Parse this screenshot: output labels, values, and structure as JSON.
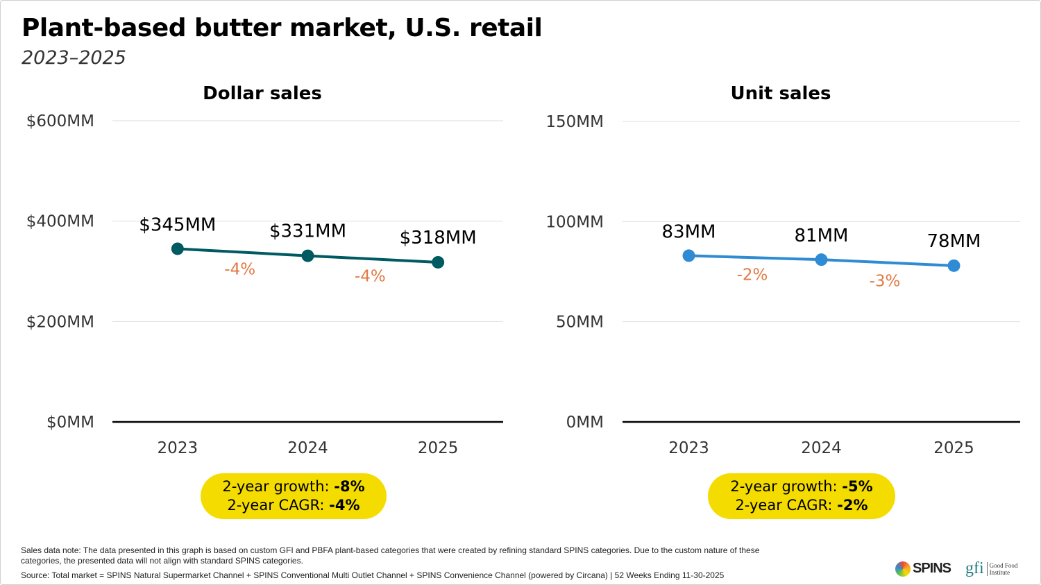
{
  "title": "Plant-based butter market, U.S. retail",
  "subtitle": "2023–2025",
  "chart_data": [
    {
      "type": "line",
      "title": "Dollar sales",
      "categories": [
        "2023",
        "2024",
        "2025"
      ],
      "values": [
        345,
        331,
        318
      ],
      "data_labels": [
        "$345MM",
        "$331MM",
        "$318MM"
      ],
      "change_labels": [
        "-4%",
        "-4%"
      ],
      "ylim": [
        0,
        600
      ],
      "yticks": [
        0,
        200,
        400,
        600
      ],
      "ytick_labels": [
        "$0MM",
        "$200MM",
        "$400MM",
        "$600MM"
      ],
      "grid": true,
      "line_color": "#005a61",
      "change_color": "#e07a45",
      "summary": {
        "growth_label": "2-year growth: ",
        "growth_value": "-8%",
        "cagr_label": "2-year CAGR: ",
        "cagr_value": "-4%"
      }
    },
    {
      "type": "line",
      "title": "Unit sales",
      "categories": [
        "2023",
        "2024",
        "2025"
      ],
      "values": [
        83,
        81,
        78
      ],
      "data_labels": [
        "83MM",
        "81MM",
        "78MM"
      ],
      "change_labels": [
        "-2%",
        "-3%"
      ],
      "ylim": [
        0,
        150
      ],
      "yticks": [
        0,
        50,
        100,
        150
      ],
      "ytick_labels": [
        "0MM",
        "50MM",
        "100MM",
        "150MM"
      ],
      "grid": true,
      "line_color": "#2e8bd4",
      "change_color": "#e07a45",
      "summary": {
        "growth_label": "2-year growth: ",
        "growth_value": "-5%",
        "cagr_label": "2-year CAGR: ",
        "cagr_value": "-2%"
      }
    }
  ],
  "footer": {
    "note": "Sales data note: The data presented in this graph is based on custom GFI and PBFA plant-based categories that were created by refining standard SPINS categories. Due to the custom nature of these categories, the presented data will not align with standard SPINS categories.",
    "source": "Source: Total market = SPINS Natural Supermarket Channel + SPINS Conventional Multi Outlet Channel + SPINS Convenience Channel (powered by Circana) | 52 Weeks Ending 11-30-2025",
    "logos": {
      "spins": "SPINS",
      "gfi": "gfi",
      "gfi_name": "Good Food Institute"
    }
  }
}
